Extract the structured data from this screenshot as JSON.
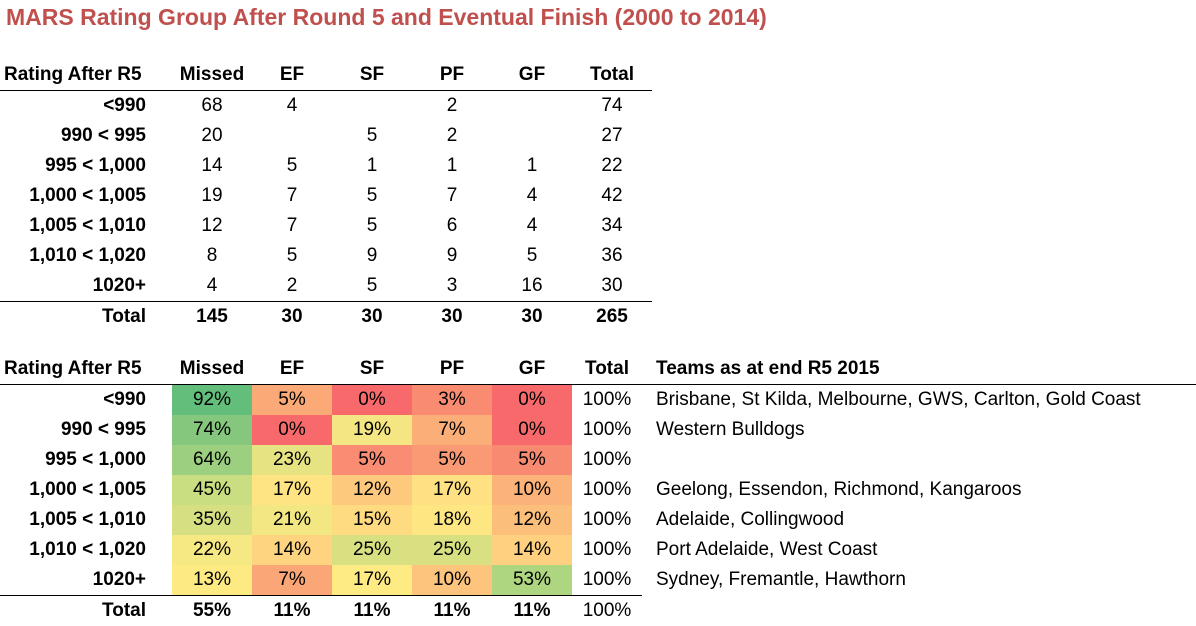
{
  "title": "MARS Rating Group After Round 5 and Eventual Finish (2000 to 2014)",
  "table1": {
    "headers": [
      "Rating After R5",
      "Missed",
      "EF",
      "SF",
      "PF",
      "GF",
      "Total"
    ],
    "rows": [
      {
        "label": "<990",
        "cells": [
          "68",
          "4",
          "",
          "2",
          "",
          "74"
        ]
      },
      {
        "label": "990 < 995",
        "cells": [
          "20",
          "",
          "5",
          "2",
          "",
          "27"
        ]
      },
      {
        "label": "995 < 1,000",
        "cells": [
          "14",
          "5",
          "1",
          "1",
          "1",
          "22"
        ]
      },
      {
        "label": "1,000 < 1,005",
        "cells": [
          "19",
          "7",
          "5",
          "7",
          "4",
          "42"
        ]
      },
      {
        "label": "1,005 < 1,010",
        "cells": [
          "12",
          "7",
          "5",
          "6",
          "4",
          "34"
        ]
      },
      {
        "label": "1,010 < 1,020",
        "cells": [
          "8",
          "5",
          "9",
          "9",
          "5",
          "36"
        ]
      },
      {
        "label": "1020+",
        "cells": [
          "4",
          "2",
          "5",
          "3",
          "16",
          "30"
        ]
      }
    ],
    "total": {
      "label": "Total",
      "cells": [
        "145",
        "30",
        "30",
        "30",
        "30",
        "265"
      ]
    }
  },
  "table2": {
    "headers": [
      "Rating After R5",
      "Missed",
      "EF",
      "SF",
      "PF",
      "GF",
      "Total",
      "Teams as at end R5 2015"
    ],
    "rows": [
      {
        "label": "<990",
        "cells": [
          "92%",
          "5%",
          "0%",
          "3%",
          "0%"
        ],
        "colors": [
          "#63BE7B",
          "#FBA977",
          "#F8696B",
          "#F98B71",
          "#F8696B"
        ],
        "total": "100%",
        "teams": "Brisbane, St Kilda, Melbourne, GWS, Carlton, Gold Coast"
      },
      {
        "label": "990 < 995",
        "cells": [
          "74%",
          "0%",
          "19%",
          "7%",
          "0%"
        ],
        "colors": [
          "#85C87D",
          "#F8696B",
          "#F4E783",
          "#FBAE78",
          "#F8696B"
        ],
        "total": "100%",
        "teams": "Western Bulldogs"
      },
      {
        "label": "995 < 1,000",
        "cells": [
          "64%",
          "23%",
          "5%",
          "5%",
          "5%"
        ],
        "colors": [
          "#9CCF7F",
          "#E6E382",
          "#F98C72",
          "#F99A74",
          "#F98A72"
        ],
        "total": "100%",
        "teams": ""
      },
      {
        "label": "1,000 < 1,005",
        "cells": [
          "45%",
          "17%",
          "12%",
          "17%",
          "10%"
        ],
        "colors": [
          "#C9DD81",
          "#FEE482",
          "#FDC97D",
          "#FEE182",
          "#FCB379"
        ],
        "total": "100%",
        "teams": "Geelong, Essendon, Richmond, Kangaroos"
      },
      {
        "label": "1,005 < 1,010",
        "cells": [
          "35%",
          "21%",
          "15%",
          "18%",
          "12%"
        ],
        "colors": [
          "#D6E082",
          "#F3E783",
          "#FEDB80",
          "#FEE683",
          "#FCBE7B"
        ],
        "total": "100%",
        "teams": "Adelaide, Collingwood"
      },
      {
        "label": "1,010 < 1,020",
        "cells": [
          "22%",
          "14%",
          "25%",
          "25%",
          "14%"
        ],
        "colors": [
          "#F6E883",
          "#FED480",
          "#D9E082",
          "#D8E082",
          "#FED07F"
        ],
        "total": "100%",
        "teams": "Port Adelaide, West Coast"
      },
      {
        "label": "1020+",
        "cells": [
          "13%",
          "7%",
          "17%",
          "10%",
          "53%"
        ],
        "colors": [
          "#FEEA83",
          "#FBA676",
          "#FFEB84",
          "#FDC47D",
          "#AED580"
        ],
        "total": "100%",
        "teams": "Sydney, Fremantle, Hawthorn"
      }
    ],
    "total": {
      "label": "Total",
      "cells": [
        "55%",
        "11%",
        "11%",
        "11%",
        "11%",
        "100%"
      ]
    }
  }
}
